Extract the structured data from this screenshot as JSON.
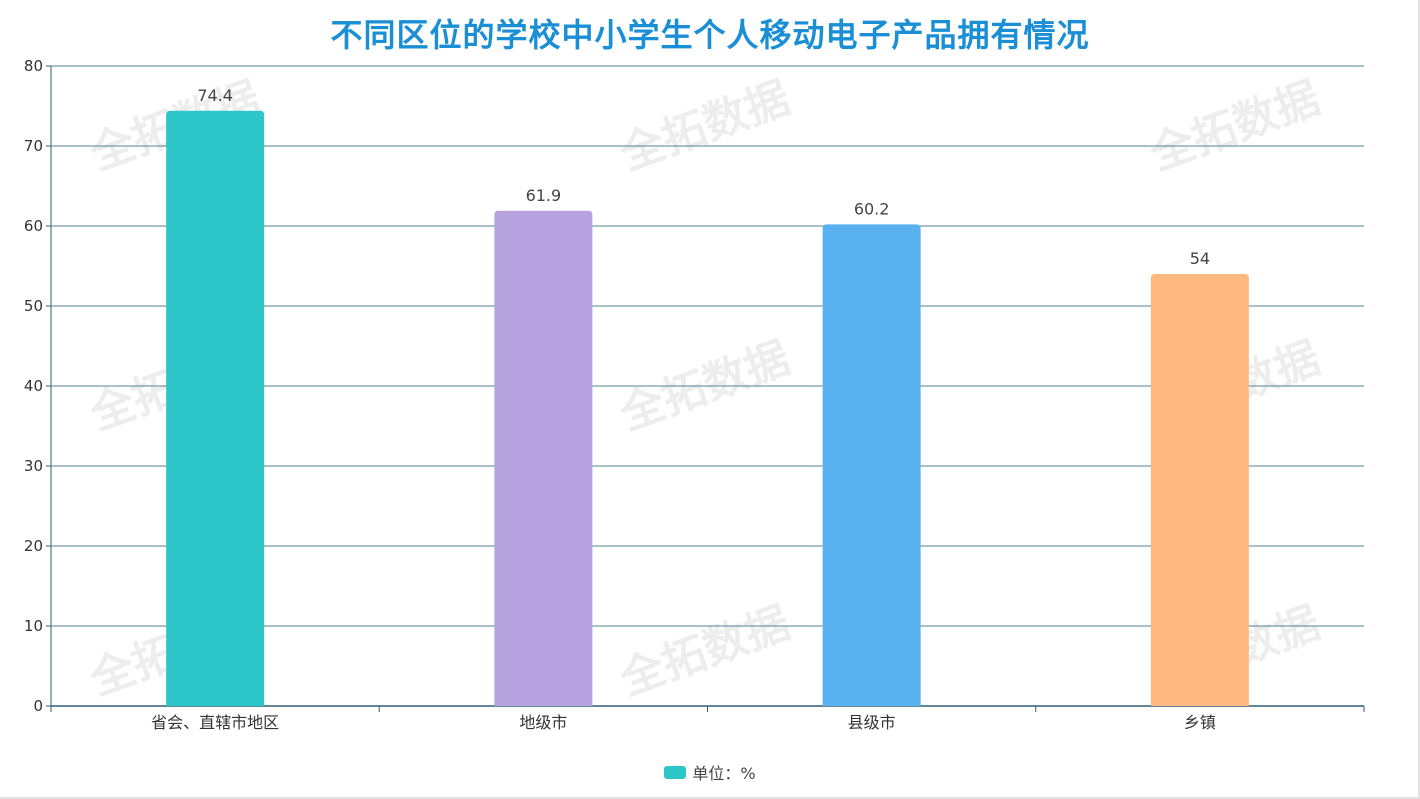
{
  "title": "不同区位的学校中小学生个人移动电子产品拥有情况",
  "watermark": "全拓数据",
  "chart_data": {
    "type": "bar",
    "title": "不同区位的学校中小学生个人移动电子产品拥有情况",
    "categories": [
      "省会、直辖市地区",
      "地级市",
      "县级市",
      "乡镇"
    ],
    "series": [
      {
        "name": "单位：%",
        "values": [
          74.4,
          61.9,
          60.2,
          54
        ]
      }
    ],
    "bar_colors": [
      "#2ec7c9",
      "#b6a2de",
      "#5ab1ef",
      "#ffb980"
    ],
    "ylim": [
      0,
      80
    ],
    "yticks": [
      0,
      10,
      20,
      30,
      40,
      50,
      60,
      70,
      80
    ],
    "grid": true,
    "legend_position": "bottom-center",
    "xlabel": "",
    "ylabel": ""
  }
}
